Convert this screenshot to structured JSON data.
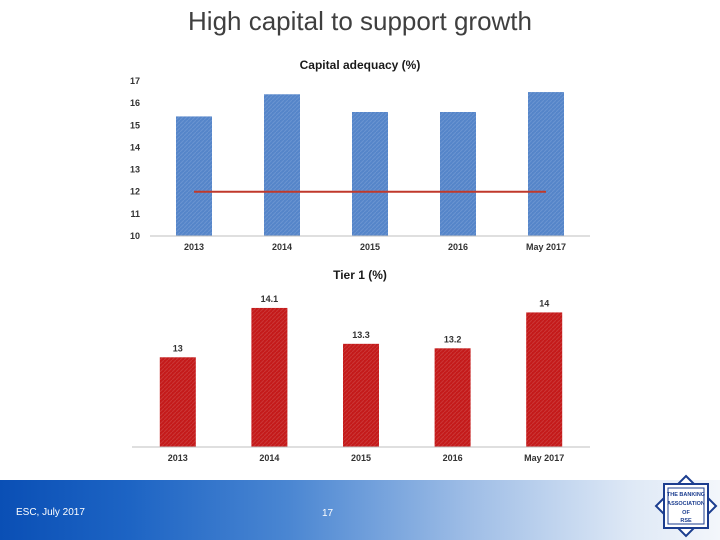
{
  "slide": {
    "title": "High capital to support growth"
  },
  "footer": {
    "left_text": "ESC, July 2017",
    "page_number": "17"
  },
  "logo": {
    "text_lines": [
      "THE BANKING",
      "ASSOCIATION",
      "OF",
      "RSE"
    ]
  },
  "colors": {
    "blue_bar": "#5585c9",
    "red_bar": "#c41a1a",
    "threshold_line": "#c0392b",
    "axis": "#bfbfbf",
    "footer_blue": "#0a4fb5"
  },
  "chart_data": [
    {
      "type": "bar",
      "title": "Capital adequacy (%)",
      "categories": [
        "2013",
        "2014",
        "2015",
        "2016",
        "May 2017"
      ],
      "values": [
        15.4,
        16.4,
        15.6,
        15.6,
        16.5
      ],
      "ylim": [
        10,
        17
      ],
      "yticks": [
        10,
        11,
        12,
        13,
        14,
        15,
        16,
        17
      ],
      "reference_line": 12,
      "grid": false,
      "color": "#5585c9"
    },
    {
      "type": "bar",
      "title": "Tier 1 (%)",
      "categories": [
        "2013",
        "2014",
        "2015",
        "2016",
        "May 2017"
      ],
      "values": [
        13,
        14.1,
        13.3,
        13.2,
        14
      ],
      "data_labels": [
        "13",
        "14.1",
        "13.3",
        "13.2",
        "14"
      ],
      "ylim": [
        11,
        14.5
      ],
      "grid": false,
      "color": "#c41a1a"
    }
  ]
}
